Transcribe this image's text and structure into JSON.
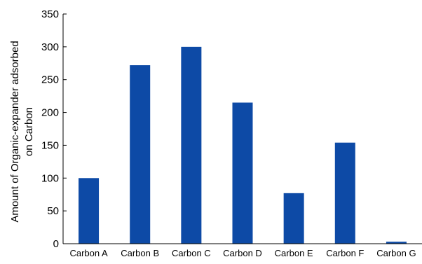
{
  "chart_data": {
    "type": "bar",
    "title": "",
    "xlabel": "",
    "ylabel": "Amount of Organic-expander adsorbed on Carbon",
    "ylabel_lines": [
      "Amount of Organic-expander adsorbed",
      "on Carbon"
    ],
    "categories": [
      "Carbon A",
      "Carbon B",
      "Carbon C",
      "Carbon D",
      "Carbon E",
      "Carbon F",
      "Carbon G"
    ],
    "values": [
      100,
      272,
      300,
      215,
      77,
      154,
      3
    ],
    "ylim": [
      0,
      350
    ],
    "yticks": [
      0,
      50,
      100,
      150,
      200,
      250,
      300,
      350
    ],
    "ytick_labels": [
      "0",
      "50",
      "100",
      "150",
      "200",
      "250",
      "300",
      "350"
    ],
    "grid": false,
    "legend": false,
    "bar_color": "#0D4AA6",
    "axis_color": "#000000"
  }
}
